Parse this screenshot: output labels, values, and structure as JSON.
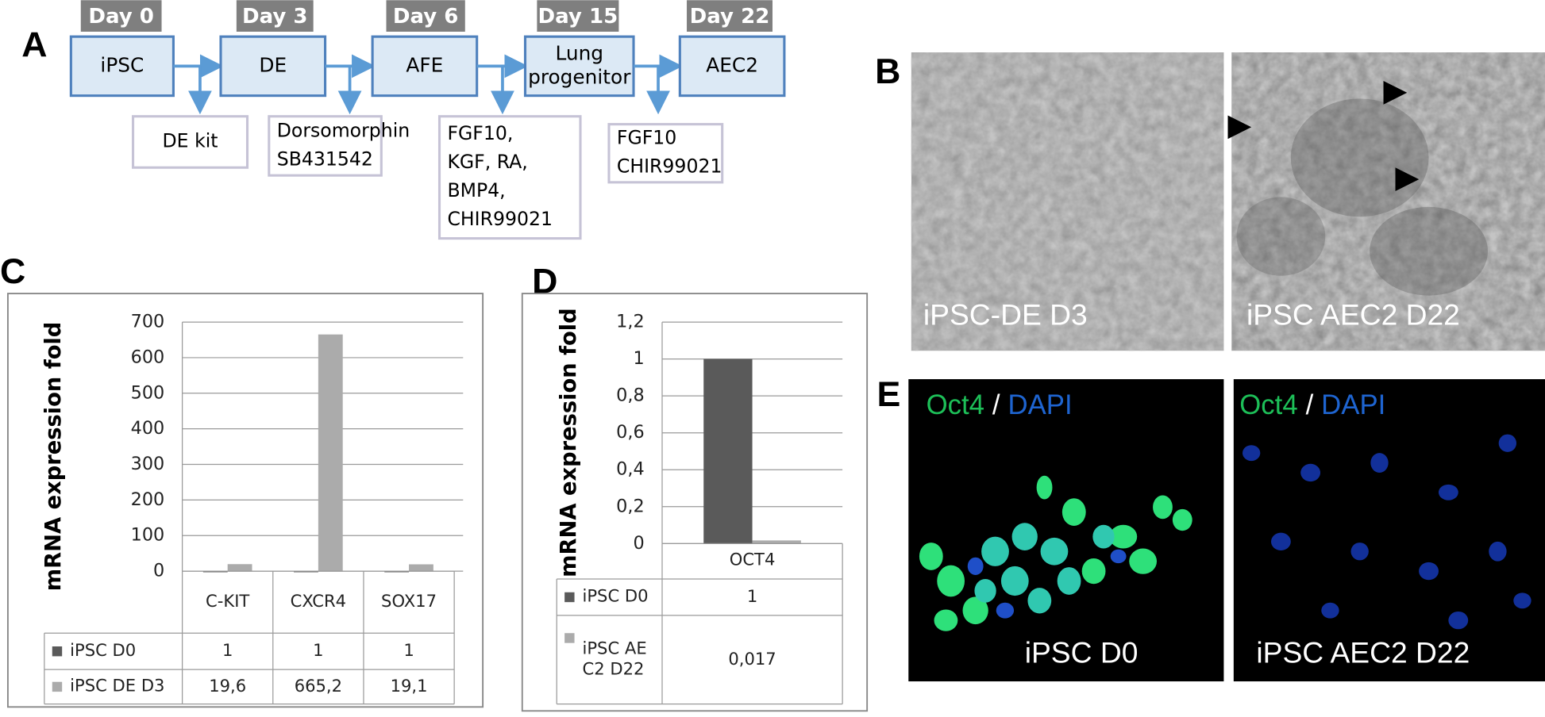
{
  "panel_labels": [
    "A",
    "B",
    "C",
    "D",
    "E"
  ],
  "flow": {
    "days": [
      "Day 0",
      "Day 3",
      "Day 6",
      "Day 15",
      "Day 22"
    ],
    "stages": [
      [
        "iPSC"
      ],
      [
        "DE"
      ],
      [
        "AFE"
      ],
      [
        "Lung",
        "progenitor"
      ],
      [
        "AEC2"
      ]
    ],
    "factors": [
      [
        "DE kit"
      ],
      [
        "Dorsomorphin",
        "SB431542"
      ],
      [
        "FGF10,",
        "KGF, RA,",
        "BMP4,",
        "CHIR99021"
      ],
      [
        "FGF10",
        "CHIR99021"
      ]
    ]
  },
  "micrographs": [
    "iPSC-DE D3",
    "iPSC AEC2  D22"
  ],
  "fluorescence": [
    {
      "stain": "Oct4",
      "separator": "/",
      "counterstain": "DAPI",
      "label": "iPSC  D0"
    },
    {
      "stain": "Oct4",
      "separator": "/",
      "counterstain": "DAPI",
      "label": "iPSC AEC2   D22"
    }
  ],
  "chart_data": [
    {
      "type": "bar",
      "ylabel": "mRNA expression fold",
      "categories": [
        "C-KIT",
        "CXCR4",
        "SOX17"
      ],
      "series": [
        {
          "name": "iPSC D0",
          "color": "#5a5a5a",
          "values": [
            1,
            1,
            1
          ]
        },
        {
          "name": "iPSC DE D3",
          "color": "#ababab",
          "values": [
            19.6,
            665.2,
            19.1
          ],
          "value_labels": [
            "19,6",
            "665,2",
            "19,1"
          ]
        }
      ],
      "ylim": [
        0,
        700
      ],
      "yticks": [
        0,
        100,
        200,
        300,
        400,
        500,
        600,
        700
      ],
      "grid": true
    },
    {
      "type": "bar",
      "ylabel": "mRNA expression fold",
      "categories": [
        "OCT4"
      ],
      "series": [
        {
          "name": "iPSC D0",
          "color": "#5a5a5a",
          "values": [
            1
          ]
        },
        {
          "name": "iPSC AEC2 D22",
          "color": "#ababab",
          "values": [
            0.017
          ],
          "value_labels": [
            "0,017"
          ]
        }
      ],
      "ylim": [
        0,
        1.2
      ],
      "yticks": [
        0,
        {
          "value": 0.2,
          "label": "0,2"
        },
        {
          "value": 0.4,
          "label": "0,4"
        },
        {
          "value": 0.6,
          "label": "0,6"
        },
        {
          "value": 0.8,
          "label": "0,8"
        },
        1,
        {
          "value": 1.2,
          "label": "1,2"
        }
      ],
      "grid": true
    }
  ]
}
